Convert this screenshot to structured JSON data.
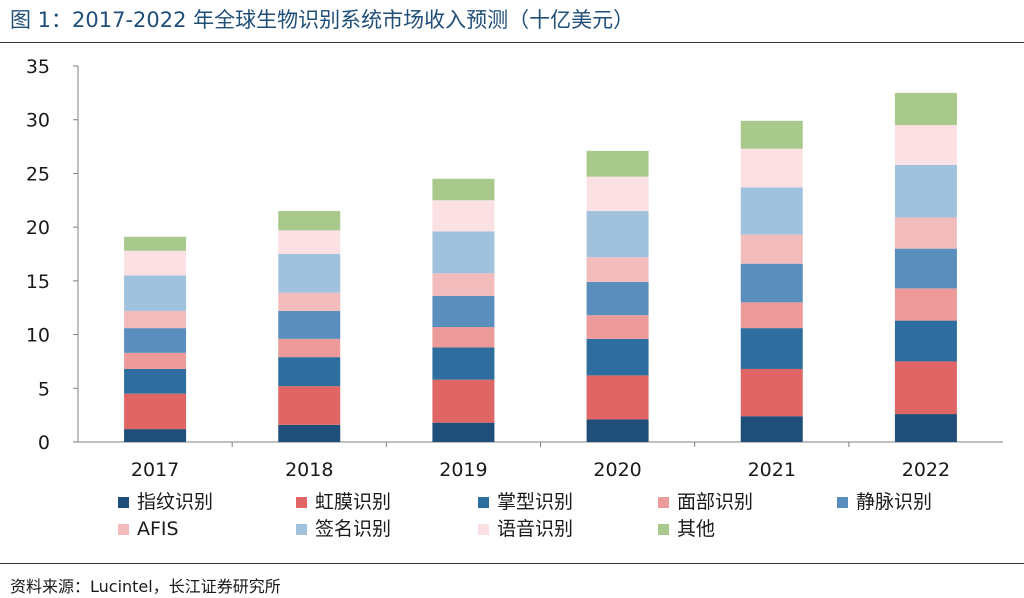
{
  "title": "图 1：2017-2022 年全球生物识别系统市场收入预测（十亿美元）",
  "source": "资料来源：Lucintel，长江证券研究所",
  "chart_data": {
    "type": "bar",
    "stacked": true,
    "title": "图 1：2017-2022 年全球生物识别系统市场收入预测（十亿美元）",
    "xlabel": "",
    "ylabel": "",
    "categories": [
      "2017",
      "2018",
      "2019",
      "2020",
      "2021",
      "2022"
    ],
    "ylim": [
      0,
      35
    ],
    "yticks": [
      0,
      5,
      10,
      15,
      20,
      25,
      30,
      35
    ],
    "grid": false,
    "legend_position": "bottom",
    "series": [
      {
        "name": "指纹识别",
        "color": "#1f4e79",
        "values": [
          1.2,
          1.6,
          1.8,
          2.1,
          2.4,
          2.6
        ]
      },
      {
        "name": "虹膜识别",
        "color": "#e06666",
        "values": [
          3.3,
          3.6,
          4.0,
          4.1,
          4.4,
          4.9
        ]
      },
      {
        "name": "掌型识别",
        "color": "#2e6e9e",
        "values": [
          2.3,
          2.7,
          3.0,
          3.4,
          3.8,
          3.8
        ]
      },
      {
        "name": "面部识别",
        "color": "#ec9a9a",
        "values": [
          1.5,
          1.7,
          1.9,
          2.2,
          2.4,
          3.0
        ]
      },
      {
        "name": "静脉识别",
        "color": "#5a8fbd",
        "values": [
          2.3,
          2.6,
          2.9,
          3.1,
          3.6,
          3.7
        ]
      },
      {
        "name": "AFIS",
        "color": "#f3bcbc",
        "values": [
          1.6,
          1.7,
          2.1,
          2.3,
          2.7,
          2.9
        ]
      },
      {
        "name": "签名识别",
        "color": "#a0c2dc",
        "values": [
          3.3,
          3.6,
          3.9,
          4.3,
          4.4,
          4.9
        ]
      },
      {
        "name": "语音识别",
        "color": "#fbe1e4",
        "values": [
          2.3,
          2.2,
          2.9,
          3.2,
          3.6,
          3.7
        ]
      },
      {
        "name": "其他",
        "color": "#a8c98b",
        "values": [
          1.3,
          1.8,
          2.0,
          2.4,
          2.6,
          3.0
        ]
      }
    ]
  }
}
